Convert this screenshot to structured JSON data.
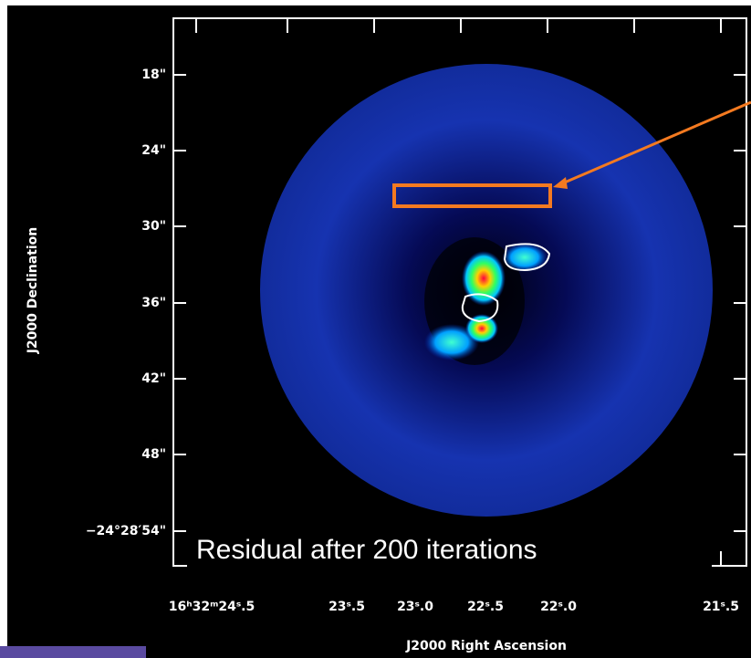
{
  "plot": {
    "y_ticks": [
      "18\"",
      "24\"",
      "30\"",
      "36\"",
      "42\"",
      "48\"",
      "−24°28′54\""
    ],
    "x_ticks": [
      "16ʰ32ᵐ24ˢ.5",
      "23ˢ.5",
      "23ˢ.0",
      "22ˢ.5",
      "22ˢ.0",
      "21ˢ.5"
    ],
    "y_axis_title": "J2000 Declination",
    "x_axis_title": "J2000 Right Ascension",
    "caption": "Residual after 200 iterations"
  }
}
